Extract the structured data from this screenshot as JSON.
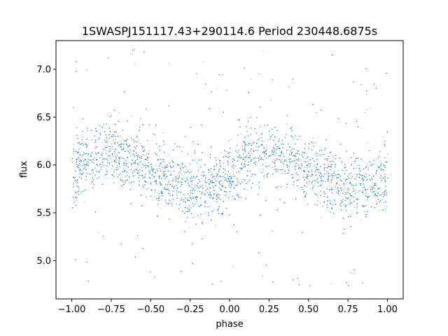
{
  "chart_data": {
    "type": "scatter",
    "title": "1SWASPJ151117.43+290114.6 Period 230448.6875s",
    "xlabel": "phase",
    "ylabel": "flux",
    "xlim": [
      -1.1,
      1.1
    ],
    "ylim": [
      4.6,
      7.3
    ],
    "xticks": [
      -1.0,
      -0.75,
      -0.5,
      -0.25,
      0.0,
      0.25,
      0.5,
      0.75,
      1.0
    ],
    "xtick_labels": [
      "−1.00",
      "−0.75",
      "−0.50",
      "−0.25",
      "0.00",
      "0.25",
      "0.50",
      "0.75",
      "1.00"
    ],
    "yticks": [
      5.0,
      5.5,
      6.0,
      6.5,
      7.0
    ],
    "ytick_labels": [
      "5.0",
      "5.5",
      "6.0",
      "6.5",
      "7.0"
    ],
    "grid": false,
    "legend": "none",
    "marker_color": "#1f77b4",
    "series": [
      {
        "profile": {
          "phase": [
            0.0,
            0.05,
            0.1,
            0.15,
            0.2,
            0.25,
            0.3,
            0.35,
            0.4,
            0.45,
            0.5,
            0.55,
            0.6,
            0.65,
            0.7,
            0.75,
            0.8,
            0.85,
            0.9,
            0.95,
            1.0
          ],
          "flux": [
            5.9,
            6.0,
            6.08,
            6.12,
            6.15,
            6.15,
            6.13,
            6.08,
            6.03,
            6.0,
            5.96,
            5.92,
            5.87,
            5.83,
            5.8,
            5.78,
            5.77,
            5.77,
            5.8,
            5.83,
            5.88
          ],
          "scatter_sigma": 0.17
        },
        "point_count": 9000,
        "outlier_range": [
          4.7,
          7.23
        ]
      }
    ]
  }
}
